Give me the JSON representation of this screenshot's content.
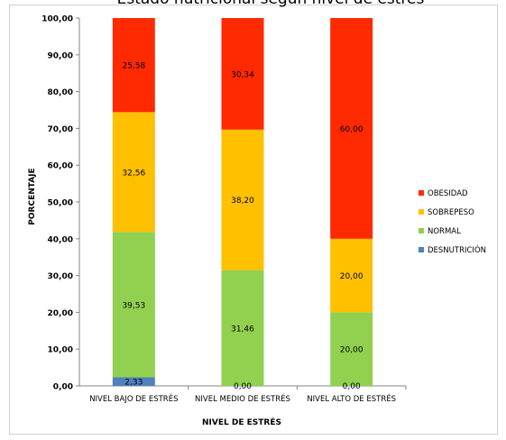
{
  "chart_data": {
    "type": "bar",
    "stacked": true,
    "title": "Estado nutricional según nivel de estrés",
    "xlabel": "NIVEL DE ESTRÉS",
    "ylabel": "PORCENTAJE",
    "ylim": [
      0,
      100
    ],
    "ytick_step": 10,
    "ytick_labels": [
      "0,00",
      "10,00",
      "20,00",
      "30,00",
      "40,00",
      "50,00",
      "60,00",
      "70,00",
      "80,00",
      "90,00",
      "100,00"
    ],
    "categories": [
      "NIVEL BAJO DE ESTRÉS",
      "NIVEL MEDIO DE ESTRÉS",
      "NIVEL ALTO DE ESTRÉS"
    ],
    "series": [
      {
        "name": "DESNUTRICIÓN",
        "color": "#4F81BD",
        "values": [
          2.33,
          0.0,
          0.0
        ],
        "labels": [
          "2,33",
          "0,00",
          "0,00"
        ]
      },
      {
        "name": "NORMAL",
        "color": "#92D050",
        "values": [
          39.53,
          31.46,
          20.0
        ],
        "labels": [
          "39,53",
          "31,46",
          "20,00"
        ]
      },
      {
        "name": "SOBREPESO",
        "color": "#FFC000",
        "values": [
          32.56,
          38.2,
          20.0
        ],
        "labels": [
          "32,56",
          "38,20",
          "20,00"
        ]
      },
      {
        "name": "OBESIDAD",
        "color": "#FF2A00",
        "values": [
          25.58,
          30.34,
          60.0
        ],
        "labels": [
          "25,58",
          "30,34",
          "60,00"
        ]
      }
    ],
    "legend_position": "right",
    "grid": false
  }
}
